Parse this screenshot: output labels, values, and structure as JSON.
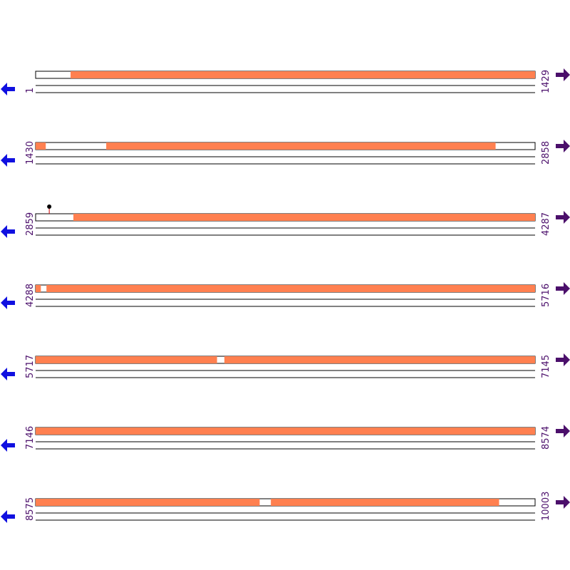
{
  "rows": [
    {
      "start": 1,
      "end": 1429,
      "segments": [
        [
          101,
          1429
        ]
      ]
    },
    {
      "start": 1430,
      "end": 2858,
      "segments": [
        [
          1430,
          1458
        ],
        [
          1632,
          2745
        ]
      ]
    },
    {
      "start": 2859,
      "end": 4287,
      "segments": [
        [
          2967,
          4287
        ]
      ],
      "markers": [
        2898
      ]
    },
    {
      "start": 4288,
      "end": 5716,
      "segments": [
        [
          4288,
          4302
        ],
        [
          4319,
          5716
        ]
      ]
    },
    {
      "start": 5717,
      "end": 7145,
      "segments": [
        [
          5717,
          6235
        ],
        [
          6257,
          7145
        ]
      ]
    },
    {
      "start": 7146,
      "end": 8574,
      "segments": [
        [
          7146,
          8574
        ]
      ]
    },
    {
      "start": 8575,
      "end": 10003,
      "segments": [
        [
          8575,
          9215
        ],
        [
          9248,
          9900
        ]
      ]
    }
  ]
}
